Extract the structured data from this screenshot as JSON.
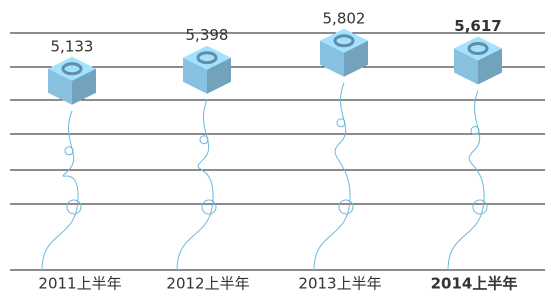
{
  "chart_data": {
    "type": "balloon",
    "categories": [
      "2011上半年",
      "2012上半年",
      "2013上半年",
      "2014上半年"
    ],
    "values": [
      5133,
      5398,
      5802,
      5617
    ],
    "value_labels": [
      "5,133",
      "5,398",
      "5,802",
      "5,617"
    ],
    "highlight_index": 3,
    "color": "#8fcaeb",
    "ylim": [
      -200,
      6000
    ]
  }
}
